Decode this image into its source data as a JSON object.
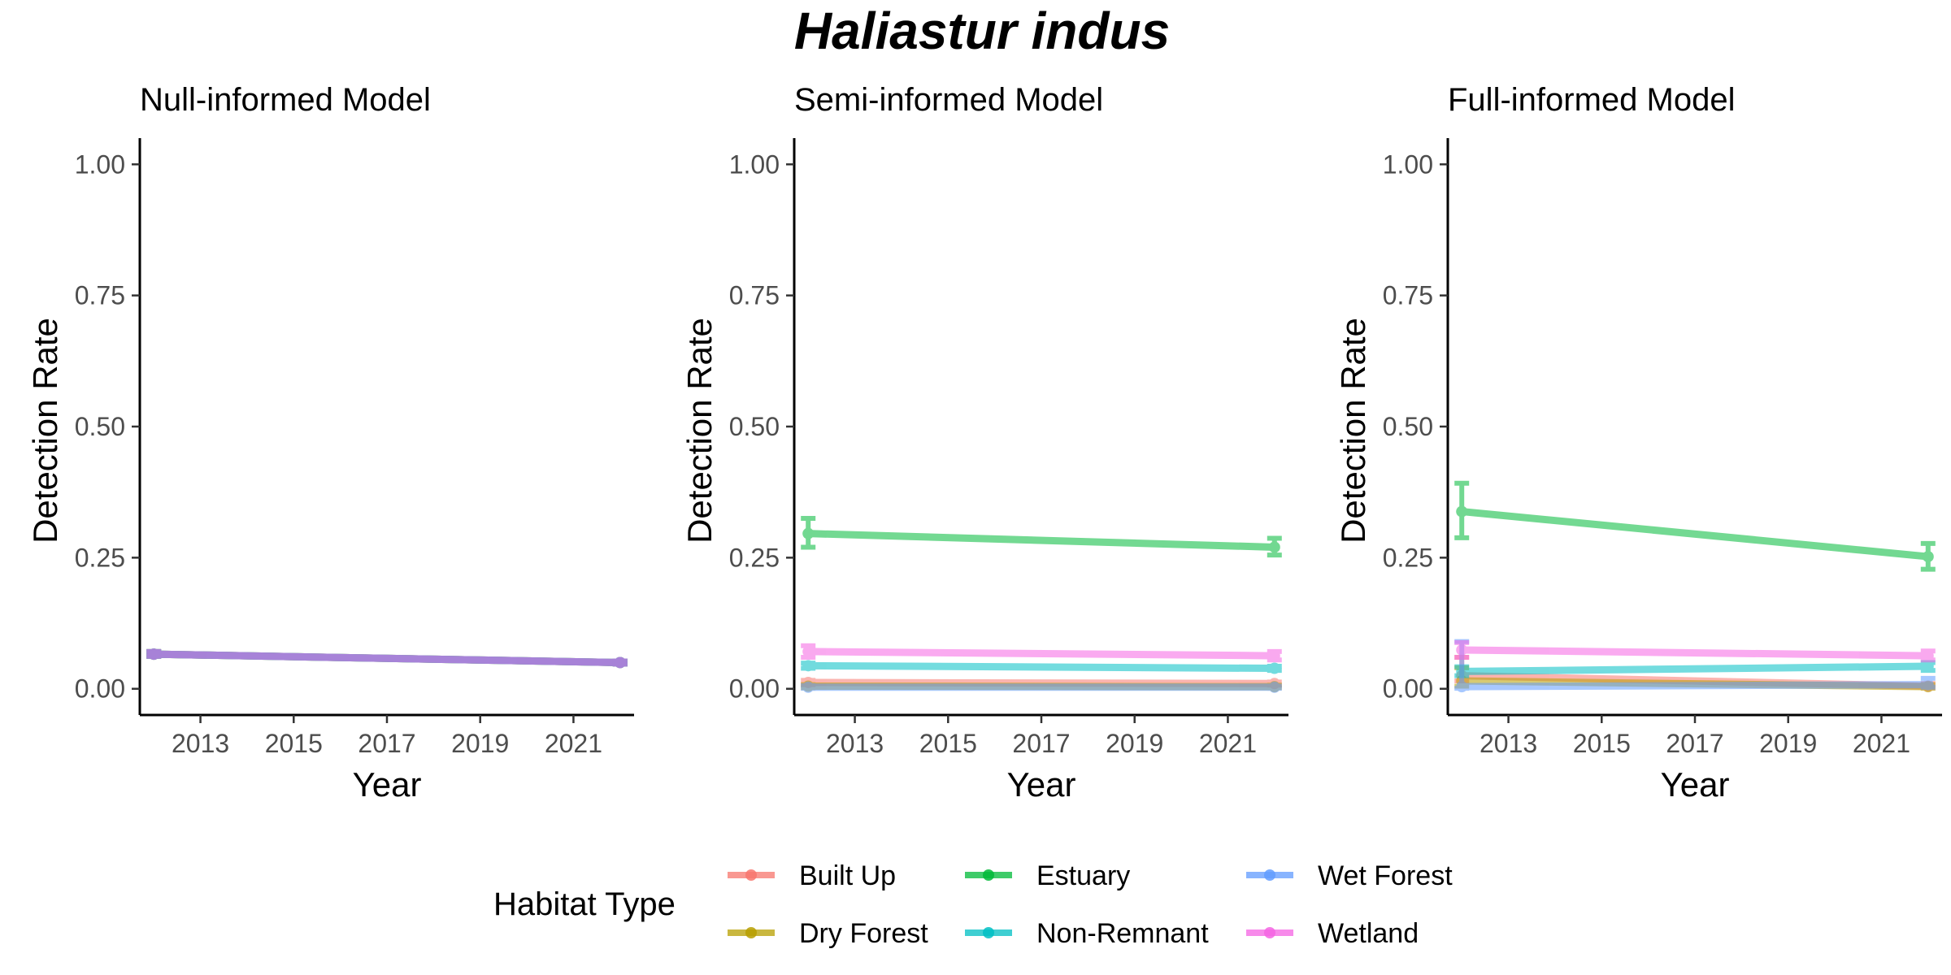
{
  "chart_data": {
    "type": "line",
    "title": "Haliastur indus",
    "legend": {
      "title": "Habitat Type",
      "placement": "bottom",
      "entries": [
        {
          "name": "Built Up",
          "color": "#F8766D"
        },
        {
          "name": "Dry Forest",
          "color": "#B79F00"
        },
        {
          "name": "Estuary",
          "color": "#00BA38"
        },
        {
          "name": "Non-Remnant",
          "color": "#00BFC4"
        },
        {
          "name": "Wet Forest",
          "color": "#619CFF"
        },
        {
          "name": "Wetland",
          "color": "#F564E3"
        }
      ]
    },
    "panels": [
      {
        "title": "Null-informed Model",
        "xlabel": "Year",
        "ylabel": "Detection Rate",
        "xlim": [
          2011.7,
          2022.3
        ],
        "ylim": [
          -0.05,
          1.05
        ],
        "xticks": [
          2013,
          2015,
          2017,
          2019,
          2021
        ],
        "xtick_labels": [
          "2013",
          "2015",
          "2017",
          "2019",
          "2021"
        ],
        "yticks": [
          0,
          0.25,
          0.5,
          0.75,
          1
        ],
        "ytick_labels": [
          "0.00",
          "0.25",
          "0.50",
          "0.75",
          "1.00"
        ],
        "series": [
          {
            "name": "Built Up",
            "x": [
              2012,
              2022
            ],
            "y": [
              0.066,
              0.05
            ],
            "lo": [
              0.062,
              0.047
            ],
            "hi": [
              0.071,
              0.053
            ]
          },
          {
            "name": "Dry Forest",
            "x": [
              2012,
              2022
            ],
            "y": [
              0.066,
              0.05
            ],
            "lo": [
              0.062,
              0.047
            ],
            "hi": [
              0.071,
              0.053
            ]
          },
          {
            "name": "Estuary",
            "x": [
              2012,
              2022
            ],
            "y": [
              0.066,
              0.05
            ],
            "lo": [
              0.062,
              0.047
            ],
            "hi": [
              0.071,
              0.053
            ]
          },
          {
            "name": "Non-Remnant",
            "x": [
              2012,
              2022
            ],
            "y": [
              0.066,
              0.05
            ],
            "lo": [
              0.062,
              0.047
            ],
            "hi": [
              0.071,
              0.053
            ]
          },
          {
            "name": "Wet Forest",
            "x": [
              2012,
              2022
            ],
            "y": [
              0.066,
              0.05
            ],
            "lo": [
              0.062,
              0.047
            ],
            "hi": [
              0.071,
              0.053
            ]
          },
          {
            "name": "Wetland",
            "x": [
              2012,
              2022
            ],
            "y": [
              0.066,
              0.05
            ],
            "lo": [
              0.062,
              0.047
            ],
            "hi": [
              0.071,
              0.053
            ]
          }
        ]
      },
      {
        "title": "Semi-informed Model",
        "xlabel": "Year",
        "ylabel": "Detection Rate",
        "xlim": [
          2011.7,
          2022.3
        ],
        "ylim": [
          -0.05,
          1.05
        ],
        "xticks": [
          2013,
          2015,
          2017,
          2019,
          2021
        ],
        "xtick_labels": [
          "2013",
          "2015",
          "2017",
          "2019",
          "2021"
        ],
        "yticks": [
          0,
          0.25,
          0.5,
          0.75,
          1
        ],
        "ytick_labels": [
          "0.00",
          "0.25",
          "0.50",
          "0.75",
          "1.00"
        ],
        "series": [
          {
            "name": "Built Up",
            "x": [
              2012,
              2022
            ],
            "y": [
              0.012,
              0.01
            ],
            "lo": [
              0.008,
              0.007
            ],
            "hi": [
              0.016,
              0.013
            ]
          },
          {
            "name": "Dry Forest",
            "x": [
              2012,
              2022
            ],
            "y": [
              0.005,
              0.004
            ],
            "lo": [
              0.002,
              0.002
            ],
            "hi": [
              0.008,
              0.007
            ]
          },
          {
            "name": "Estuary",
            "x": [
              2012,
              2022
            ],
            "y": [
              0.296,
              0.27
            ],
            "lo": [
              0.27,
              0.255
            ],
            "hi": [
              0.325,
              0.287
            ]
          },
          {
            "name": "Non-Remnant",
            "x": [
              2012,
              2022
            ],
            "y": [
              0.044,
              0.039
            ],
            "lo": [
              0.039,
              0.035
            ],
            "hi": [
              0.049,
              0.043
            ]
          },
          {
            "name": "Wet Forest",
            "x": [
              2012,
              2022
            ],
            "y": [
              0.003,
              0.003
            ],
            "lo": [
              0.001,
              0.001
            ],
            "hi": [
              0.006,
              0.005
            ]
          },
          {
            "name": "Wetland",
            "x": [
              2012,
              2022
            ],
            "y": [
              0.071,
              0.063
            ],
            "lo": [
              0.06,
              0.055
            ],
            "hi": [
              0.082,
              0.071
            ]
          }
        ]
      },
      {
        "title": "Full-informed Model",
        "xlabel": "Year",
        "ylabel": "Detection Rate",
        "xlim": [
          2011.7,
          2022.3
        ],
        "ylim": [
          -0.05,
          1.05
        ],
        "xticks": [
          2013,
          2015,
          2017,
          2019,
          2021
        ],
        "xtick_labels": [
          "2013",
          "2015",
          "2017",
          "2019",
          "2021"
        ],
        "yticks": [
          0,
          0.25,
          0.5,
          0.75,
          1
        ],
        "ytick_labels": [
          "0.00",
          "0.25",
          "0.50",
          "0.75",
          "1.00"
        ],
        "series": [
          {
            "name": "Built Up",
            "x": [
              2012,
              2022
            ],
            "y": [
              0.025,
              0.005
            ],
            "lo": [
              0.015,
              0.002
            ],
            "hi": [
              0.06,
              0.01
            ]
          },
          {
            "name": "Dry Forest",
            "x": [
              2012,
              2022
            ],
            "y": [
              0.015,
              0.004
            ],
            "lo": [
              0.005,
              0.001
            ],
            "hi": [
              0.04,
              0.008
            ]
          },
          {
            "name": "Estuary",
            "x": [
              2012,
              2022
            ],
            "y": [
              0.338,
              0.252
            ],
            "lo": [
              0.288,
              0.228
            ],
            "hi": [
              0.392,
              0.277
            ]
          },
          {
            "name": "Non-Remnant",
            "x": [
              2012,
              2022
            ],
            "y": [
              0.033,
              0.043
            ],
            "lo": [
              0.025,
              0.035
            ],
            "hi": [
              0.042,
              0.05
            ]
          },
          {
            "name": "Wet Forest",
            "x": [
              2012,
              2022
            ],
            "y": [
              0.004,
              0.008
            ],
            "lo": [
              0.001,
              0.003
            ],
            "hi": [
              0.09,
              0.02
            ]
          },
          {
            "name": "Wetland",
            "x": [
              2012,
              2022
            ],
            "y": [
              0.074,
              0.063
            ],
            "lo": [
              0.06,
              0.055
            ],
            "hi": [
              0.088,
              0.072
            ]
          }
        ]
      }
    ]
  }
}
